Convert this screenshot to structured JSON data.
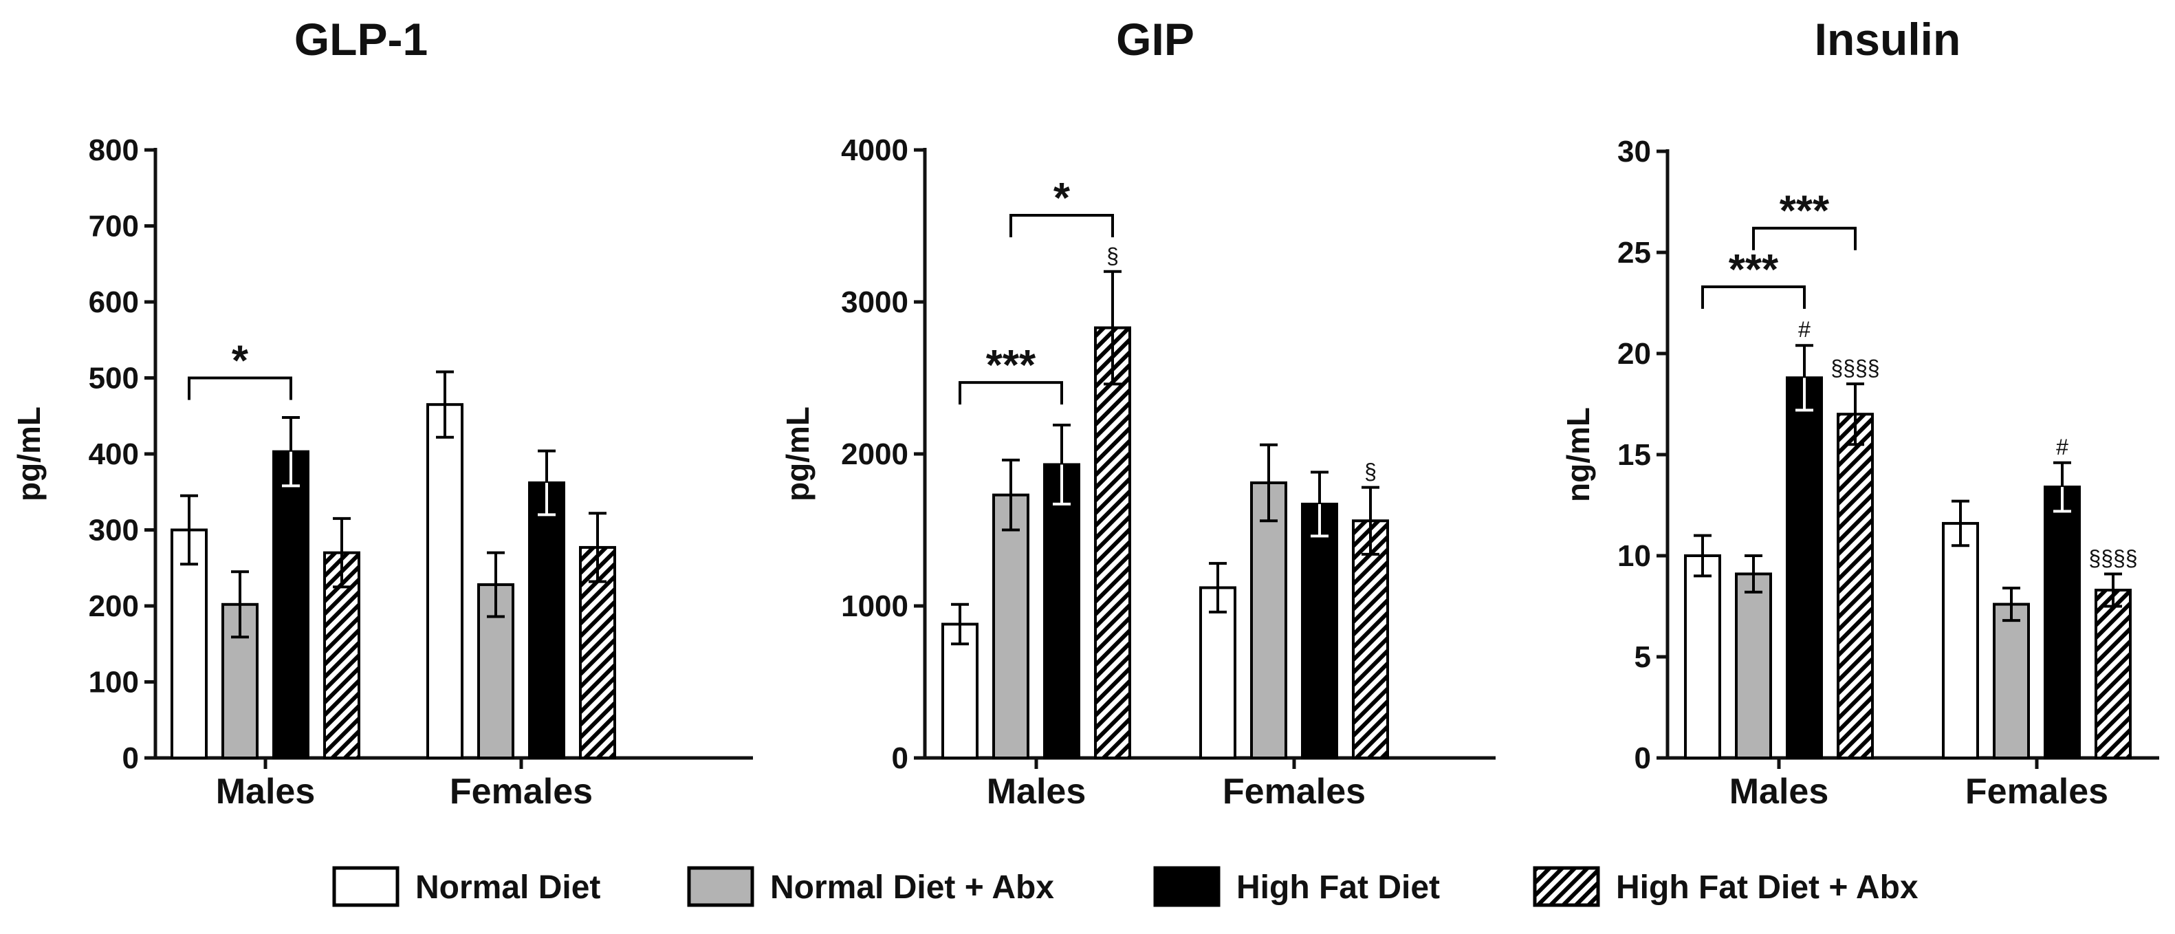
{
  "colors": {
    "normal_diet": "#ffffff",
    "normal_diet_abx": "#b3b3b3",
    "high_fat_diet": "#000000",
    "high_fat_diet_abx": "hatched",
    "axis": "#111111"
  },
  "legend": [
    "Normal Diet",
    "Normal Diet + Abx",
    "High Fat Diet",
    "High Fat Diet + Abx"
  ],
  "chart_data": [
    {
      "type": "bar",
      "title": "GLP-1",
      "ylabel": "pg/mL",
      "ylim": [
        0,
        800
      ],
      "yticks": [
        0,
        100,
        200,
        300,
        400,
        500,
        600,
        700,
        800
      ],
      "categories": [
        "Males",
        "Females"
      ],
      "series": [
        {
          "name": "Normal Diet",
          "values": [
            300,
            465
          ],
          "errors": [
            45,
            43
          ]
        },
        {
          "name": "Normal Diet + Abx",
          "values": [
            202,
            228
          ],
          "errors": [
            43,
            42
          ]
        },
        {
          "name": "High Fat Diet",
          "values": [
            403,
            362
          ],
          "errors": [
            45,
            42
          ]
        },
        {
          "name": "High Fat Diet + Abx",
          "values": [
            270,
            277
          ],
          "errors": [
            45,
            45
          ]
        }
      ],
      "brackets": [
        {
          "category": 0,
          "from_series": 0,
          "to_series": 2,
          "y": 500,
          "label": "*"
        }
      ],
      "annotations": []
    },
    {
      "type": "bar",
      "title": "GIP",
      "ylabel": "pg/mL",
      "ylim": [
        0,
        4000
      ],
      "yticks": [
        0,
        1000,
        2000,
        3000,
        4000
      ],
      "categories": [
        "Males",
        "Females"
      ],
      "series": [
        {
          "name": "Normal Diet",
          "values": [
            880,
            1120
          ],
          "errors": [
            130,
            160
          ]
        },
        {
          "name": "Normal Diet + Abx",
          "values": [
            1730,
            1810
          ],
          "errors": [
            230,
            250
          ]
        },
        {
          "name": "High Fat Diet",
          "values": [
            1930,
            1670
          ],
          "errors": [
            260,
            210
          ]
        },
        {
          "name": "High Fat Diet + Abx",
          "values": [
            2830,
            1560
          ],
          "errors": [
            370,
            220
          ]
        }
      ],
      "brackets": [
        {
          "category": 0,
          "from_series": 0,
          "to_series": 2,
          "y": 2470,
          "label": "***"
        },
        {
          "category": 0,
          "from_series": 1,
          "to_series": 3,
          "y": 3570,
          "label": "*"
        }
      ],
      "annotations": [
        {
          "category": 0,
          "series": 3,
          "label": "§"
        },
        {
          "category": 1,
          "series": 3,
          "label": "§"
        }
      ]
    },
    {
      "type": "bar",
      "title": "Insulin",
      "ylabel": "ng/mL",
      "ylim": [
        0,
        30
      ],
      "yticks": [
        0,
        5,
        10,
        15,
        20,
        25,
        30
      ],
      "categories": [
        "Males",
        "Females"
      ],
      "series": [
        {
          "name": "Normal Diet",
          "values": [
            10.0,
            11.6
          ],
          "errors": [
            1.0,
            1.1
          ]
        },
        {
          "name": "Normal Diet + Abx",
          "values": [
            9.1,
            7.6
          ],
          "errors": [
            0.9,
            0.8
          ]
        },
        {
          "name": "High Fat Diet",
          "values": [
            18.8,
            13.4
          ],
          "errors": [
            1.6,
            1.2
          ]
        },
        {
          "name": "High Fat Diet + Abx",
          "values": [
            17.0,
            8.3
          ],
          "errors": [
            1.5,
            0.8
          ]
        }
      ],
      "brackets": [
        {
          "category": 0,
          "from_series": 0,
          "to_series": 2,
          "y": 23.3,
          "label": "***"
        },
        {
          "category": 0,
          "from_series": 1,
          "to_series": 3,
          "y": 26.2,
          "label": "***"
        }
      ],
      "annotations": [
        {
          "category": 0,
          "series": 2,
          "label": "#"
        },
        {
          "category": 0,
          "series": 3,
          "label": "§§§§"
        },
        {
          "category": 1,
          "series": 2,
          "label": "#"
        },
        {
          "category": 1,
          "series": 3,
          "label": "§§§§"
        }
      ]
    }
  ]
}
